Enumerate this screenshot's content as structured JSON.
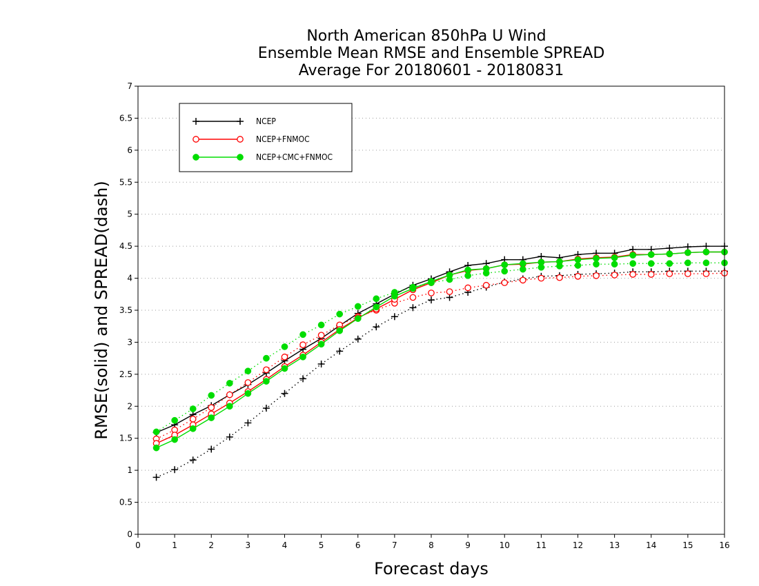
{
  "chart_data": {
    "type": "line",
    "title_lines": [
      "North American 850hPa U Wind",
      "Ensemble Mean RMSE and Ensemble SPREAD",
      "Average For 20180601 - 20180831"
    ],
    "xlabel": "Forecast days",
    "ylabel": "RMSE(solid)  and  SPREAD(dash)",
    "xlim": [
      0,
      16
    ],
    "ylim": [
      0,
      7
    ],
    "xticks": [
      "0",
      "1",
      "2",
      "3",
      "4",
      "5",
      "6",
      "7",
      "8",
      "9",
      "10",
      "11",
      "12",
      "13",
      "14",
      "15",
      "16"
    ],
    "yticks": [
      "0",
      "0.5",
      "1",
      "1.5",
      "2",
      "2.5",
      "3",
      "3.5",
      "4",
      "4.5",
      "5",
      "5.5",
      "6",
      "6.5",
      "7"
    ],
    "grid": "horizontal dotted",
    "legend_position": "top-left",
    "x": [
      0.5,
      1,
      1.5,
      2,
      2.5,
      3,
      3.5,
      4,
      4.5,
      5,
      5.5,
      6,
      6.5,
      7,
      7.5,
      8,
      8.5,
      9,
      9.5,
      10,
      10.5,
      11,
      11.5,
      12,
      12.5,
      13,
      13.5,
      14,
      14.5,
      15,
      15.5,
      16
    ],
    "series": [
      {
        "name": "NCEP",
        "color": "#000000",
        "marker": "plus",
        "rmse": [
          1.59,
          1.71,
          1.87,
          2.01,
          2.18,
          2.34,
          2.52,
          2.71,
          2.89,
          3.06,
          3.26,
          3.45,
          3.6,
          3.75,
          3.89,
          3.99,
          4.1,
          4.2,
          4.23,
          4.29,
          4.29,
          4.34,
          4.32,
          4.37,
          4.39,
          4.39,
          4.45,
          4.45,
          4.47,
          4.49,
          4.5,
          4.5
        ],
        "spread": [
          0.89,
          1.01,
          1.16,
          1.33,
          1.52,
          1.74,
          1.97,
          2.2,
          2.43,
          2.66,
          2.86,
          3.05,
          3.24,
          3.4,
          3.54,
          3.66,
          3.7,
          3.78,
          3.86,
          3.94,
          3.99,
          4.03,
          4.04,
          4.06,
          4.07,
          4.08,
          4.1,
          4.1,
          4.11,
          4.11,
          4.11,
          4.11
        ]
      },
      {
        "name": "NCEP+FNMOC",
        "color": "#ff0000",
        "marker": "open-circle",
        "rmse": [
          1.42,
          1.55,
          1.71,
          1.88,
          2.05,
          2.23,
          2.42,
          2.62,
          2.8,
          3.0,
          3.2,
          3.38,
          3.52,
          3.67,
          3.82,
          3.93,
          4.05,
          4.12,
          4.15,
          4.21,
          4.22,
          4.25,
          4.26,
          4.3,
          4.32,
          4.33,
          4.37,
          4.37,
          4.38,
          4.4,
          4.41,
          4.41
        ],
        "spread": [
          1.49,
          1.63,
          1.8,
          1.98,
          2.18,
          2.37,
          2.57,
          2.77,
          2.96,
          3.11,
          3.27,
          3.4,
          3.5,
          3.61,
          3.7,
          3.77,
          3.79,
          3.85,
          3.89,
          3.93,
          3.97,
          4.0,
          4.01,
          4.03,
          4.04,
          4.05,
          4.06,
          4.06,
          4.07,
          4.07,
          4.07,
          4.08
        ]
      },
      {
        "name": "NCEP+CMC+FNMOC",
        "color": "#00dd00",
        "marker": "filled-circle",
        "rmse": [
          1.35,
          1.48,
          1.65,
          1.82,
          2.0,
          2.2,
          2.39,
          2.59,
          2.77,
          2.97,
          3.18,
          3.37,
          3.55,
          3.72,
          3.84,
          3.95,
          4.05,
          4.13,
          4.15,
          4.21,
          4.23,
          4.25,
          4.26,
          4.29,
          4.31,
          4.32,
          4.36,
          4.37,
          4.38,
          4.4,
          4.41,
          4.41
        ],
        "spread": [
          1.6,
          1.78,
          1.96,
          2.17,
          2.36,
          2.55,
          2.75,
          2.93,
          3.12,
          3.27,
          3.44,
          3.56,
          3.68,
          3.78,
          3.86,
          3.93,
          3.98,
          4.04,
          4.08,
          4.11,
          4.14,
          4.17,
          4.19,
          4.2,
          4.22,
          4.22,
          4.23,
          4.23,
          4.23,
          4.24,
          4.24,
          4.24
        ]
      }
    ]
  }
}
